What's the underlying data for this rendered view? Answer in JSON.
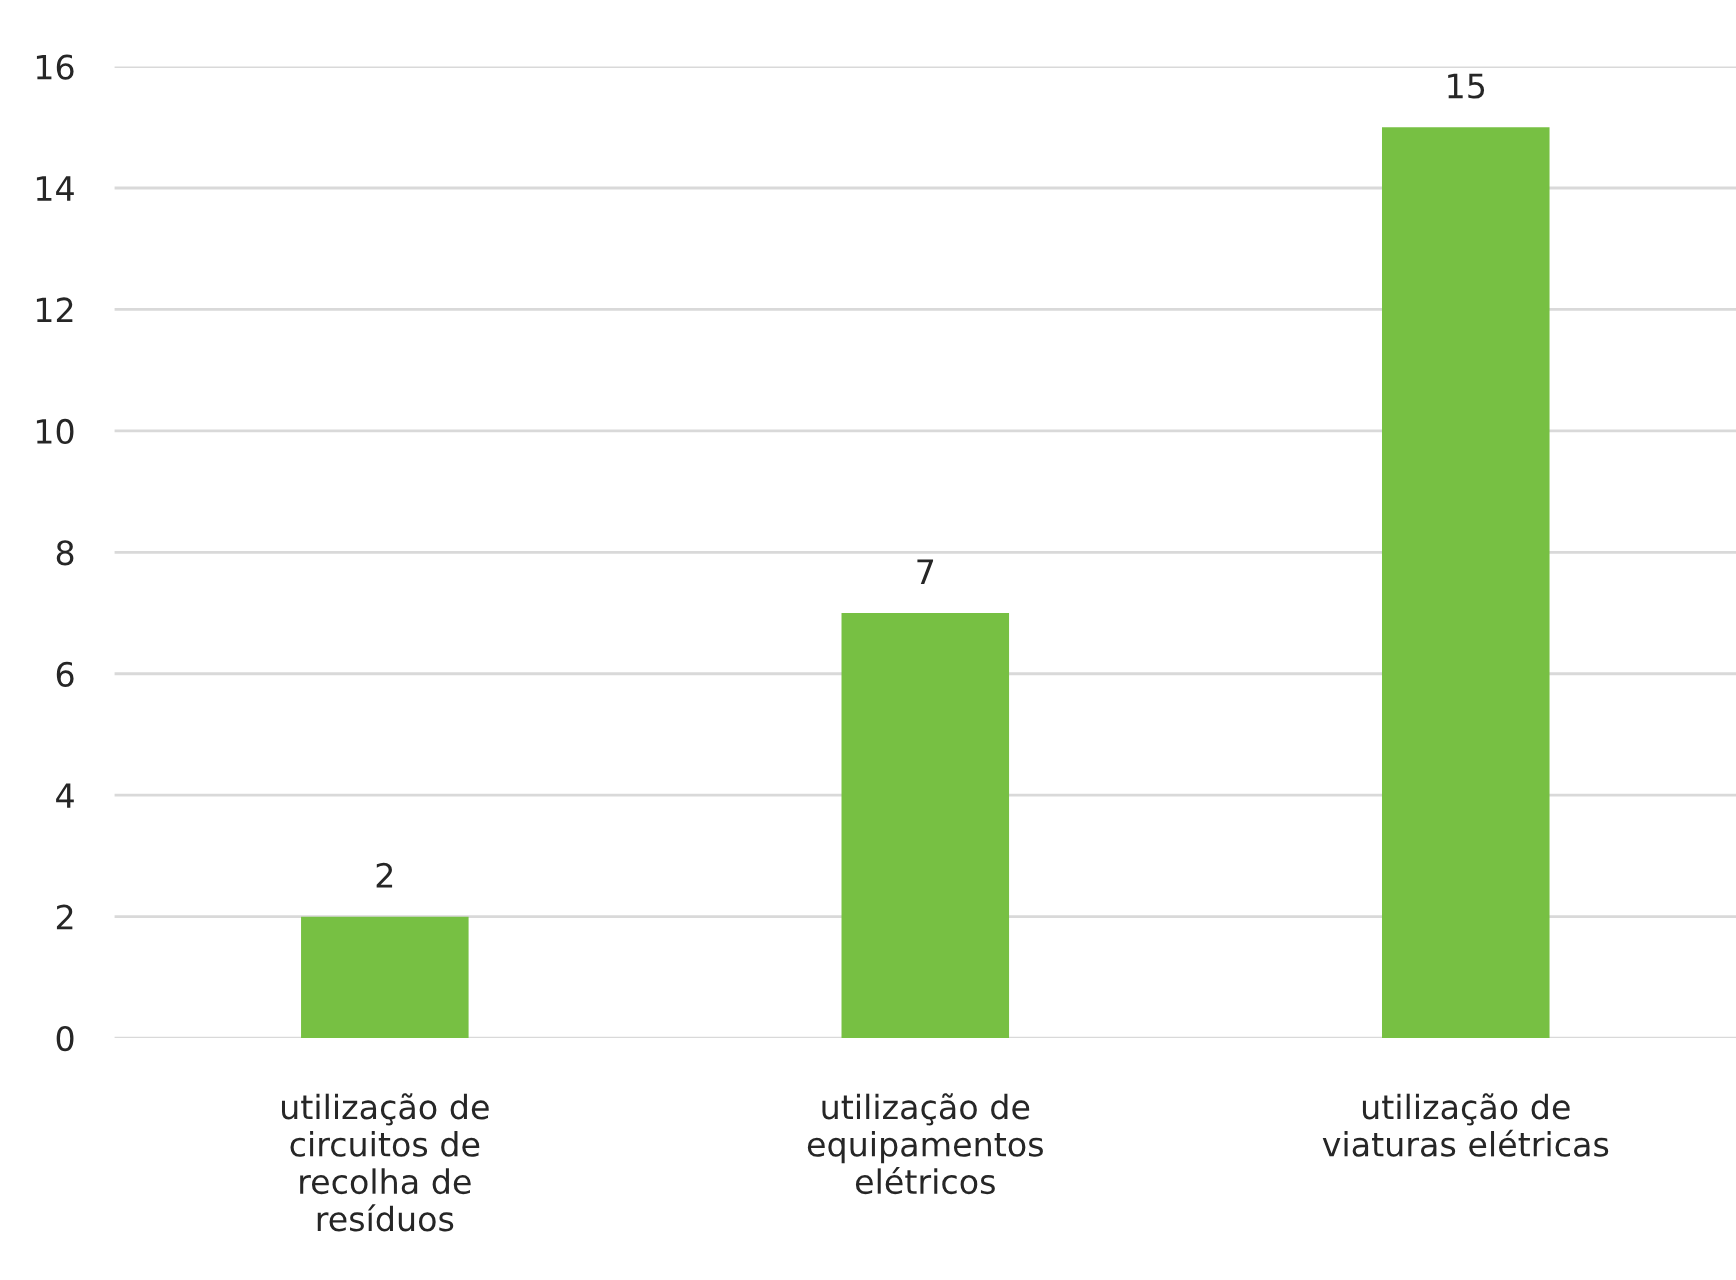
{
  "chart_data": {
    "type": "bar",
    "categories": [
      "utilização de\ncircuitos de\nrecolha de\nresíduos",
      "utilização de\nequipamentos\nelétricos",
      "utilização de\nviaturas elétricas"
    ],
    "values": [
      2,
      7,
      15
    ],
    "color": "#77c043",
    "ylim": [
      0,
      16
    ],
    "yticks": [
      0,
      2,
      4,
      6,
      8,
      10,
      12,
      14,
      16
    ],
    "grid": "y",
    "data_labels": true
  }
}
